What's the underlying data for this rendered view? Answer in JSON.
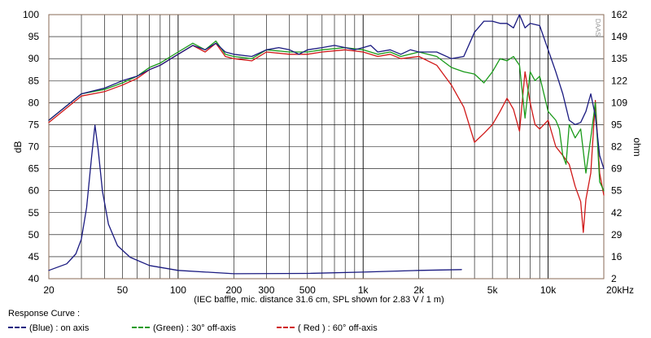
{
  "chart_data": {
    "type": "line",
    "x_scale": "log",
    "xlim": [
      20,
      20000
    ],
    "ylim_left": [
      40,
      100
    ],
    "ylim_right": [
      2,
      162
    ],
    "ylabel_left": "dB",
    "ylabel_right": "ohm",
    "xlabel": "(IEC baffle, mic. distance 31.6 cm, SPL shown for 2.83 V / 1 m)",
    "watermark": "DAAS",
    "grid": true,
    "x_tick_labels": [
      {
        "v": 20,
        "t": "20"
      },
      {
        "v": 50,
        "t": "50"
      },
      {
        "v": 100,
        "t": "100"
      },
      {
        "v": 200,
        "t": "200"
      },
      {
        "v": 300,
        "t": "300"
      },
      {
        "v": 500,
        "t": "500"
      },
      {
        "v": 1000,
        "t": "1k"
      },
      {
        "v": 2000,
        "t": "2k"
      },
      {
        "v": 5000,
        "t": "5k"
      },
      {
        "v": 10000,
        "t": "10k"
      },
      {
        "v": 20000,
        "t": "20kHz"
      }
    ],
    "y_left_ticks": [
      "40",
      "45",
      "50",
      "55",
      "60",
      "65",
      "70",
      "75",
      "80",
      "85",
      "90",
      "95",
      "100"
    ],
    "y_right_ticks": [
      "2",
      "16",
      "29",
      "42",
      "55",
      "69",
      "82",
      "95",
      "109",
      "122",
      "135",
      "149",
      "162"
    ],
    "colors": {
      "axis_label": "#000000",
      "on_axis": "#1a1a80",
      "off30": "#1a9a1a",
      "off60": "#d01818",
      "impedance": "#1a1a80",
      "plot_frame": "#8a6a55"
    },
    "legend_title": "Response Curve :",
    "legend": [
      {
        "label": "(Blue) : on axis",
        "color": "#1a1a80"
      },
      {
        "label": "(Green) : 30° off-axis",
        "color": "#1a9a1a"
      },
      {
        "label": "( Red ) : 60° off-axis",
        "color": "#d01818"
      }
    ],
    "series": [
      {
        "name": "(Blue) : on axis",
        "key": "on_axis",
        "axis": "left",
        "points": [
          [
            20,
            76
          ],
          [
            30,
            82
          ],
          [
            40,
            83.3
          ],
          [
            50,
            85
          ],
          [
            60,
            86
          ],
          [
            70,
            87.5
          ],
          [
            80,
            88.5
          ],
          [
            100,
            91
          ],
          [
            120,
            93
          ],
          [
            140,
            92
          ],
          [
            160,
            93.5
          ],
          [
            180,
            91.5
          ],
          [
            200,
            91
          ],
          [
            250,
            90.5
          ],
          [
            300,
            92
          ],
          [
            350,
            92.5
          ],
          [
            400,
            92
          ],
          [
            450,
            91
          ],
          [
            500,
            92
          ],
          [
            600,
            92.5
          ],
          [
            700,
            93
          ],
          [
            800,
            92.5
          ],
          [
            900,
            92
          ],
          [
            1000,
            92.5
          ],
          [
            1100,
            93
          ],
          [
            1200,
            91.5
          ],
          [
            1400,
            92
          ],
          [
            1600,
            91
          ],
          [
            1800,
            92
          ],
          [
            2000,
            91.5
          ],
          [
            2500,
            91.5
          ],
          [
            3000,
            90
          ],
          [
            3500,
            90.5
          ],
          [
            4000,
            96
          ],
          [
            4500,
            98.5
          ],
          [
            5000,
            98.5
          ],
          [
            5500,
            98
          ],
          [
            6000,
            98
          ],
          [
            6500,
            97
          ],
          [
            7000,
            100
          ],
          [
            7500,
            97
          ],
          [
            8000,
            98
          ],
          [
            9000,
            97.5
          ],
          [
            10000,
            92
          ],
          [
            11000,
            87
          ],
          [
            12000,
            82
          ],
          [
            13000,
            76
          ],
          [
            14000,
            75
          ],
          [
            15000,
            75.5
          ],
          [
            16000,
            78
          ],
          [
            17000,
            82
          ],
          [
            18000,
            77
          ],
          [
            19000,
            68
          ],
          [
            20000,
            65
          ]
        ]
      },
      {
        "name": "(Green) : 30° off-axis",
        "key": "off30",
        "axis": "left",
        "points": [
          [
            20,
            76
          ],
          [
            30,
            82
          ],
          [
            40,
            83
          ],
          [
            50,
            84.5
          ],
          [
            60,
            86
          ],
          [
            70,
            88
          ],
          [
            80,
            89
          ],
          [
            100,
            91.5
          ],
          [
            120,
            93.5
          ],
          [
            140,
            92
          ],
          [
            160,
            94
          ],
          [
            180,
            91
          ],
          [
            200,
            90.5
          ],
          [
            250,
            90
          ],
          [
            300,
            92
          ],
          [
            400,
            91.5
          ],
          [
            500,
            91.5
          ],
          [
            600,
            92
          ],
          [
            800,
            92.5
          ],
          [
            1000,
            92
          ],
          [
            1200,
            91
          ],
          [
            1400,
            91.5
          ],
          [
            1600,
            90.5
          ],
          [
            2000,
            91.5
          ],
          [
            2500,
            90.5
          ],
          [
            3000,
            88
          ],
          [
            3500,
            87
          ],
          [
            4000,
            86.5
          ],
          [
            4500,
            84.5
          ],
          [
            5000,
            87
          ],
          [
            5500,
            90
          ],
          [
            6000,
            89.5
          ],
          [
            6500,
            90.5
          ],
          [
            7000,
            88.5
          ],
          [
            7500,
            76.5
          ],
          [
            8000,
            87
          ],
          [
            8500,
            85
          ],
          [
            9000,
            86
          ],
          [
            10000,
            78
          ],
          [
            11000,
            76
          ],
          [
            11500,
            74
          ],
          [
            12000,
            68
          ],
          [
            12500,
            66
          ],
          [
            13000,
            75
          ],
          [
            14000,
            72
          ],
          [
            15000,
            74
          ],
          [
            16000,
            64
          ],
          [
            17000,
            72
          ],
          [
            18000,
            80
          ],
          [
            19000,
            62
          ],
          [
            20000,
            60
          ]
        ]
      },
      {
        "name": "( Red ) : 60° off-axis",
        "key": "off60",
        "axis": "left",
        "points": [
          [
            20,
            75.5
          ],
          [
            30,
            81.5
          ],
          [
            40,
            82.5
          ],
          [
            50,
            84
          ],
          [
            60,
            85.5
          ],
          [
            70,
            87.5
          ],
          [
            80,
            88.5
          ],
          [
            100,
            91
          ],
          [
            120,
            93
          ],
          [
            140,
            91.5
          ],
          [
            160,
            93.5
          ],
          [
            180,
            90.5
          ],
          [
            200,
            90
          ],
          [
            250,
            89.5
          ],
          [
            300,
            91.5
          ],
          [
            400,
            91
          ],
          [
            500,
            91
          ],
          [
            600,
            91.5
          ],
          [
            800,
            92
          ],
          [
            1000,
            91.5
          ],
          [
            1200,
            90.5
          ],
          [
            1400,
            91
          ],
          [
            1600,
            90
          ],
          [
            2000,
            90.5
          ],
          [
            2500,
            88.5
          ],
          [
            3000,
            84
          ],
          [
            3500,
            79
          ],
          [
            4000,
            71
          ],
          [
            4500,
            73
          ],
          [
            5000,
            75
          ],
          [
            5500,
            78
          ],
          [
            6000,
            81
          ],
          [
            6500,
            78.5
          ],
          [
            7000,
            73.5
          ],
          [
            7500,
            87
          ],
          [
            8000,
            80
          ],
          [
            8500,
            75
          ],
          [
            9000,
            74
          ],
          [
            10000,
            76
          ],
          [
            11000,
            70
          ],
          [
            12000,
            68
          ],
          [
            13000,
            66
          ],
          [
            14000,
            61
          ],
          [
            15000,
            57.5
          ],
          [
            15500,
            50.5
          ],
          [
            16000,
            58
          ],
          [
            17000,
            64
          ],
          [
            18000,
            80.5
          ],
          [
            19000,
            64
          ],
          [
            20000,
            59
          ]
        ]
      },
      {
        "name": "impedance",
        "key": "impedance",
        "axis": "right",
        "points": [
          [
            20,
            7
          ],
          [
            25,
            11
          ],
          [
            28,
            17
          ],
          [
            30,
            26
          ],
          [
            32,
            45
          ],
          [
            34,
            75
          ],
          [
            35.5,
            95
          ],
          [
            37,
            80
          ],
          [
            39,
            55
          ],
          [
            42,
            35
          ],
          [
            47,
            22
          ],
          [
            55,
            15
          ],
          [
            70,
            10
          ],
          [
            100,
            7
          ],
          [
            200,
            5
          ],
          [
            500,
            5.2
          ],
          [
            1000,
            6
          ],
          [
            2000,
            7
          ],
          [
            3400,
            7.5
          ]
        ]
      }
    ]
  }
}
